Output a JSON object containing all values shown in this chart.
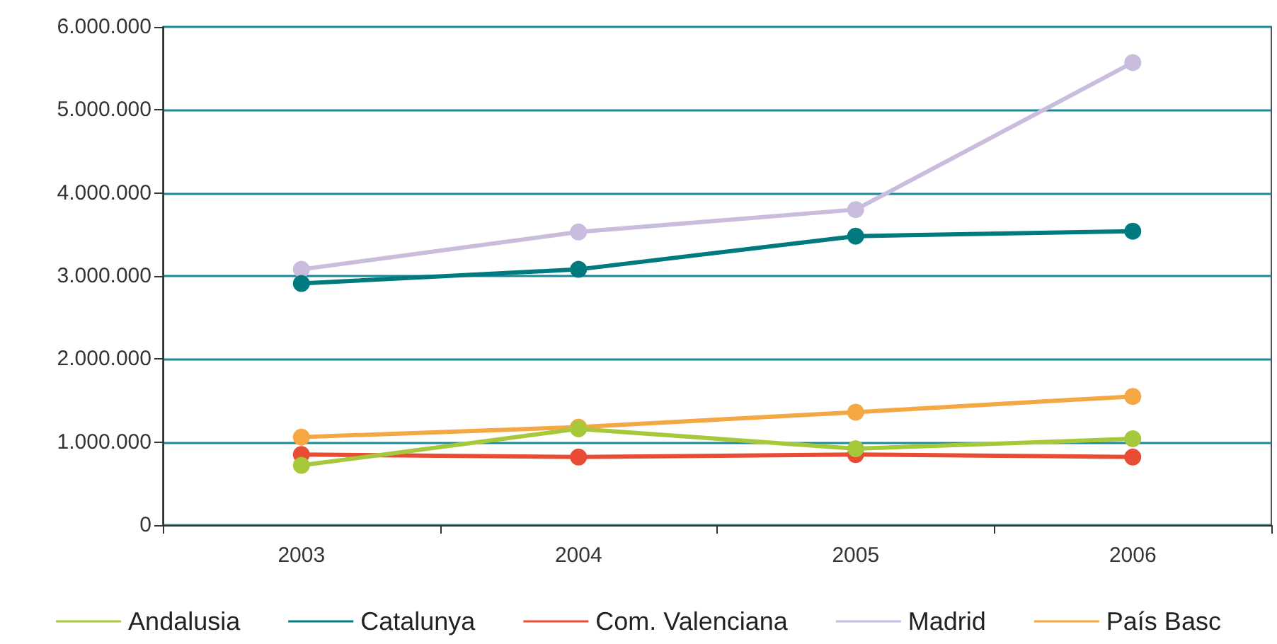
{
  "chart_data": {
    "type": "line",
    "categories": [
      "2003",
      "2004",
      "2005",
      "2006"
    ],
    "series": [
      {
        "name": "Andalusia",
        "color": "#a8c83c",
        "values": [
          720000,
          1160000,
          920000,
          1040000
        ]
      },
      {
        "name": "Catalunya",
        "color": "#007a7f",
        "values": [
          2910000,
          3080000,
          3480000,
          3540000
        ]
      },
      {
        "name": "Com. Valenciana",
        "color": "#e84c35",
        "values": [
          850000,
          820000,
          850000,
          820000
        ]
      },
      {
        "name": "Madrid",
        "color": "#c9bcdc",
        "values": [
          3080000,
          3530000,
          3800000,
          5570000
        ]
      },
      {
        "name": "País Basc",
        "color": "#f4a742",
        "values": [
          1060000,
          1180000,
          1360000,
          1550000
        ]
      }
    ],
    "ylim": [
      0,
      6000000
    ],
    "yticks": [
      {
        "value": 0,
        "label": "0"
      },
      {
        "value": 1000000,
        "label": "1.000.000"
      },
      {
        "value": 2000000,
        "label": "2.000.000"
      },
      {
        "value": 3000000,
        "label": "3.000.000"
      },
      {
        "value": 4000000,
        "label": "4.000.000"
      },
      {
        "value": 5000000,
        "label": "5.000.000"
      },
      {
        "value": 6000000,
        "label": "6.000.000"
      }
    ],
    "grid": "y",
    "legend": "bottom",
    "marker": "circle",
    "line_style": "solid"
  }
}
